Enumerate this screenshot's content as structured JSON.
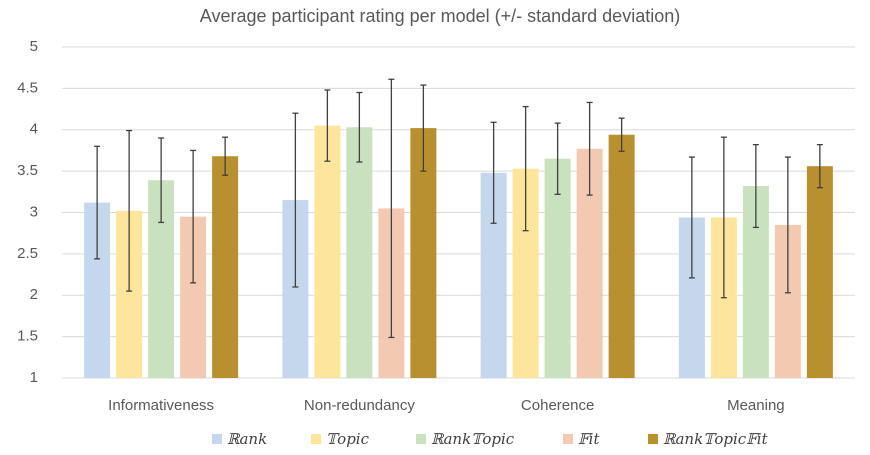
{
  "chart_data": {
    "type": "bar",
    "title": "Average participant rating per model (+/- standard deviation)",
    "categories": [
      "Informativeness",
      "Non-redundancy",
      "Coherence",
      "Meaning"
    ],
    "series": [
      {
        "name": "ℝank",
        "color": "#c5d7ec",
        "values": [
          3.12,
          3.15,
          3.48,
          2.94
        ],
        "errors": [
          0.68,
          1.05,
          0.61,
          0.73
        ]
      },
      {
        "name": "𝕋opic",
        "color": "#fde59b",
        "values": [
          3.02,
          4.05,
          3.53,
          2.94
        ],
        "errors": [
          0.97,
          0.43,
          0.75,
          0.97
        ]
      },
      {
        "name": "ℝank𝕋opic",
        "color": "#c9e1bf",
        "values": [
          3.39,
          4.03,
          3.65,
          3.32
        ],
        "errors": [
          0.51,
          0.42,
          0.43,
          0.5
        ]
      },
      {
        "name": "𝔽it",
        "color": "#f4c9b1",
        "values": [
          2.95,
          3.05,
          3.77,
          2.85
        ],
        "errors": [
          0.8,
          1.56,
          0.56,
          0.82
        ]
      },
      {
        "name": "ℝank𝕋opic𝔽it",
        "color": "#b8902f",
        "values": [
          3.68,
          4.02,
          3.94,
          3.56
        ],
        "errors": [
          0.23,
          0.52,
          0.2,
          0.26
        ]
      }
    ],
    "ylim": [
      1,
      5
    ],
    "yticks": [
      1,
      1.5,
      2,
      2.5,
      3,
      3.5,
      4,
      4.5,
      5
    ],
    "grid": true,
    "legend": "bottom"
  }
}
